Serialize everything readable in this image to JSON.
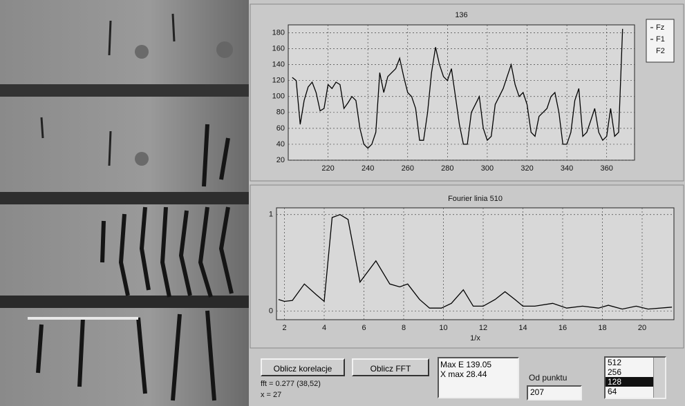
{
  "chart_data": [
    {
      "type": "line",
      "title": "136",
      "legend": [
        "Fz",
        "F1",
        "F2"
      ],
      "color": "#000000",
      "grid": true,
      "x": [
        202,
        204,
        206,
        208,
        210,
        212,
        214,
        216,
        218,
        220,
        222,
        224,
        226,
        228,
        230,
        232,
        234,
        236,
        238,
        240,
        242,
        244,
        246,
        248,
        250,
        252,
        254,
        256,
        258,
        260,
        262,
        264,
        266,
        268,
        270,
        272,
        274,
        276,
        278,
        280,
        282,
        284,
        286,
        288,
        290,
        292,
        294,
        296,
        298,
        300,
        302,
        304,
        306,
        308,
        310,
        312,
        314,
        316,
        318,
        320,
        322,
        324,
        326,
        328,
        330,
        332,
        334,
        336,
        338,
        340,
        342,
        344,
        346,
        348,
        350,
        352,
        354,
        356,
        358,
        360,
        362,
        364,
        366,
        368
      ],
      "values": [
        124,
        120,
        65,
        95,
        112,
        118,
        105,
        82,
        85,
        115,
        110,
        118,
        115,
        85,
        92,
        100,
        95,
        60,
        40,
        35,
        40,
        55,
        130,
        105,
        125,
        130,
        135,
        148,
        125,
        105,
        100,
        85,
        45,
        45,
        80,
        130,
        162,
        140,
        125,
        120,
        135,
        100,
        65,
        40,
        40,
        80,
        90,
        100,
        60,
        45,
        50,
        90,
        100,
        110,
        125,
        140,
        115,
        100,
        105,
        90,
        55,
        50,
        75,
        80,
        85,
        100,
        105,
        80,
        40,
        40,
        55,
        95,
        110,
        50,
        55,
        70,
        85,
        55,
        45,
        50,
        85,
        50,
        55,
        185
      ],
      "xlim": [
        200,
        374
      ],
      "xticks": [
        220,
        240,
        260,
        280,
        300,
        320,
        340,
        360
      ],
      "ylim": [
        20,
        190
      ],
      "yticks": [
        20,
        40,
        60,
        80,
        100,
        120,
        140,
        160,
        180
      ]
    },
    {
      "type": "line",
      "title": "Fourier linia 510",
      "x_label": "1/x",
      "color": "#000000",
      "grid": true,
      "x": [
        1.7,
        2.0,
        2.4,
        3.0,
        3.6,
        4.0,
        4.4,
        4.8,
        5.2,
        5.8,
        6.6,
        7.3,
        7.8,
        8.2,
        8.8,
        9.3,
        9.9,
        10.4,
        11.0,
        11.5,
        12.0,
        12.6,
        13.1,
        13.6,
        14.0,
        14.6,
        15.5,
        16.2,
        17.0,
        17.8,
        18.3,
        19.0,
        19.7,
        20.3,
        21.5
      ],
      "values": [
        0.12,
        0.1,
        0.11,
        0.28,
        0.17,
        0.1,
        0.97,
        1.0,
        0.95,
        0.3,
        0.52,
        0.28,
        0.25,
        0.28,
        0.12,
        0.03,
        0.03,
        0.08,
        0.22,
        0.05,
        0.05,
        0.12,
        0.2,
        0.12,
        0.05,
        0.05,
        0.08,
        0.03,
        0.05,
        0.03,
        0.06,
        0.02,
        0.05,
        0.02,
        0.04
      ],
      "xlim": [
        1.6,
        21.6
      ],
      "xticks": [
        2,
        4,
        6,
        8,
        10,
        12,
        14,
        16,
        18,
        20
      ],
      "ylim": [
        -0.09,
        1.07
      ],
      "yticks": [
        0,
        1
      ]
    }
  ],
  "controls": {
    "buttons": [
      "Oblicz korelacje",
      "Oblicz FFT"
    ],
    "status": [
      "fft = 0.277 (38,52)",
      "x = 27"
    ],
    "result": [
      "Max E 139.05",
      "X max 28.44"
    ],
    "start_label": "Od punktu",
    "start_value": "207",
    "sizes": [
      "512",
      "256",
      "128",
      "64"
    ]
  }
}
